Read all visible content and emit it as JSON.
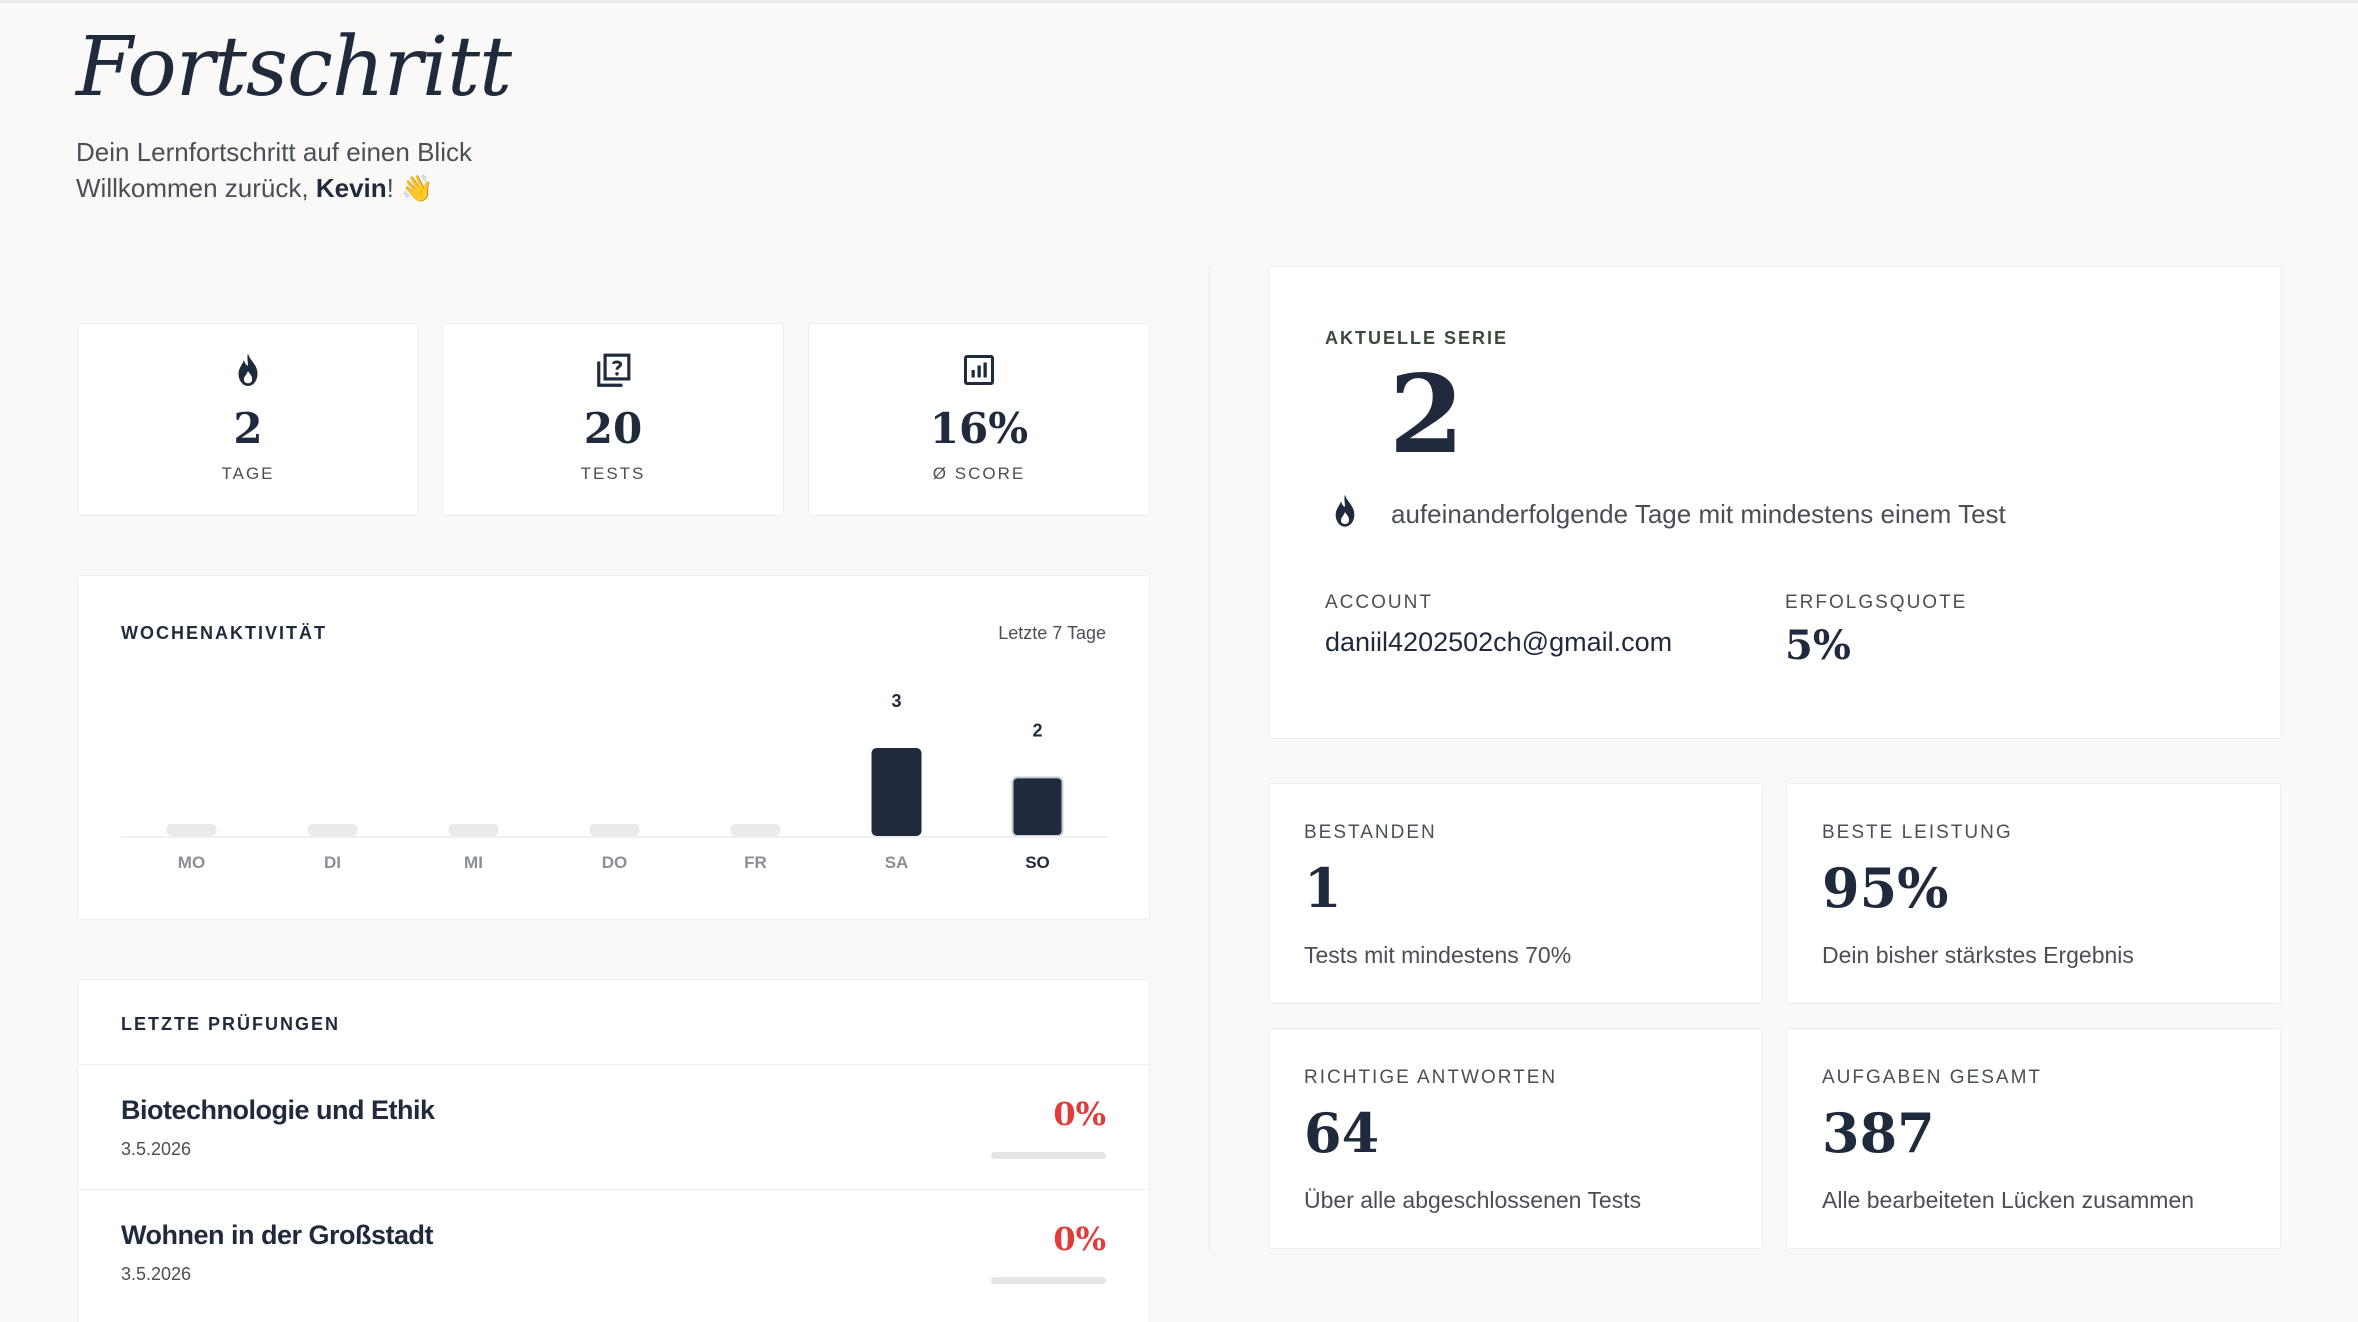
{
  "header": {
    "title": "Fortschritt",
    "subtitle": "Dein Lernfortschritt auf einen Blick",
    "welcome_prefix": "Willkommen zurück, ",
    "user_name": "Kevin",
    "welcome_suffix": "! 👋"
  },
  "stats": [
    {
      "icon": "flame-icon",
      "value": "2",
      "label": "TAGE"
    },
    {
      "icon": "quiz-icon",
      "value": "20",
      "label": "TESTS"
    },
    {
      "icon": "chart-icon",
      "value": "16%",
      "label": "Ø SCORE"
    }
  ],
  "weekly": {
    "heading": "WOCHENAKTIVITÄT",
    "range": "Letzte 7 Tage"
  },
  "chart_data": {
    "type": "bar",
    "categories": [
      "MO",
      "DI",
      "MI",
      "DO",
      "FR",
      "SA",
      "SO"
    ],
    "values": [
      0,
      0,
      0,
      0,
      0,
      3,
      2
    ],
    "highlight": "SO"
  },
  "exams": {
    "heading": "LETZTE PRÜFUNGEN",
    "items": [
      {
        "title": "Biotechnologie und Ethik",
        "date": "3.5.2026",
        "score": "0%",
        "progress": 0
      },
      {
        "title": "Wohnen in der Großstadt",
        "date": "3.5.2026",
        "score": "0%",
        "progress": 0
      }
    ]
  },
  "streak": {
    "label": "AKTUELLE SERIE",
    "value": "2",
    "description": "aufeinanderfolgende Tage mit mindestens einem Test",
    "account_label": "ACCOUNT",
    "account_email": "daniil4202502ch@gmail.com",
    "rate_label": "ERFOLGSQUOTE",
    "rate_value": "5%"
  },
  "metrics": [
    {
      "label": "BESTANDEN",
      "value": "1",
      "desc": "Tests mit mindestens 70%"
    },
    {
      "label": "BESTE LEISTUNG",
      "value": "95%",
      "desc": "Dein bisher stärkstes Ergebnis"
    },
    {
      "label": "RICHTIGE ANTWORTEN",
      "value": "64",
      "desc": "Über alle abgeschlossenen Tests"
    },
    {
      "label": "AUFGABEN GESAMT",
      "value": "387",
      "desc": "Alle bearbeiteten Lücken zusammen"
    }
  ],
  "colors": {
    "navy": "#1f2a3d",
    "danger": "#e23b3b",
    "bar_empty": "#ebeae8",
    "background": "#faf9f7"
  }
}
